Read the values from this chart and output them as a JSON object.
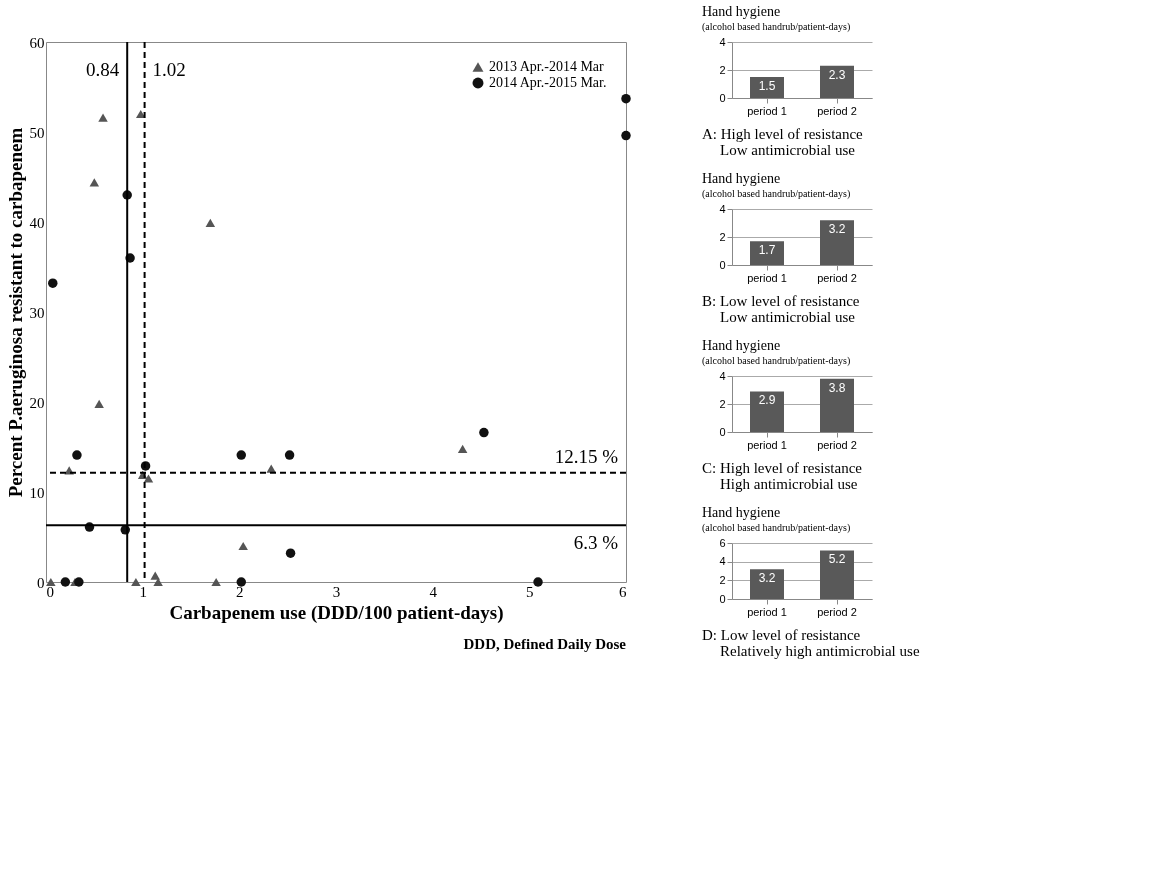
{
  "chart_data": [
    {
      "type": "scatter",
      "xlabel": "Carbapenem use (DDD/100 patient-days)",
      "ylabel": "Percent P.aeruginosa resistant to carbapenem",
      "xlim": [
        0,
        6
      ],
      "xticks": [
        0,
        1,
        2,
        3,
        4,
        5,
        6
      ],
      "ylim": [
        0,
        60
      ],
      "yticks": [
        0,
        10,
        20,
        30,
        40,
        50,
        60
      ],
      "grid": false,
      "legend": "top right",
      "series": [
        {
          "name": "2013 Apr.-2014 Mar",
          "color": "#555555",
          "marker": "triangle",
          "x": [
            0.59,
            0.98,
            0.5,
            1.7,
            0.55,
            0.24,
            1.0,
            1.06,
            2.33,
            2.04,
            1.13,
            1.16,
            0.93,
            1.76,
            0.3,
            0.05,
            4.31
          ],
          "values": [
            51.6,
            52.0,
            44.4,
            39.9,
            19.8,
            12.4,
            11.9,
            11.5,
            12.6,
            4.0,
            0.7,
            0,
            0,
            0,
            0,
            0,
            14.8
          ]
        },
        {
          "name": "2014 Apr.-2015 Mar.",
          "color": "#111111",
          "marker": "circle",
          "x": [
            0.84,
            0.87,
            0.07,
            0.32,
            1.03,
            2.02,
            2.52,
            0.45,
            0.82,
            2.53,
            2.02,
            0.2,
            0.34,
            4.53,
            5.09,
            6,
            6
          ],
          "values": [
            43.0,
            36.0,
            33.2,
            14.1,
            12.9,
            14.1,
            14.1,
            6.1,
            5.8,
            3.2,
            0,
            0,
            0,
            16.6,
            0,
            53.7,
            49.6
          ]
        }
      ],
      "ref_lines": [
        {
          "axis": "x",
          "value": 0.84,
          "label": "0.84",
          "line_style": "solid",
          "color": "#000000"
        },
        {
          "axis": "x",
          "value": 1.02,
          "label": "1.02",
          "line_style": "dashed",
          "color": "#000000"
        },
        {
          "axis": "y",
          "value": 12.15,
          "label": "12.15 %",
          "line_style": "dashed",
          "color": "#000000"
        },
        {
          "axis": "y",
          "value": 6.3,
          "label": "6.3 %",
          "line_style": "solid",
          "color": "#000000"
        }
      ],
      "annotations": [
        "DDD, Defined Daily Dose"
      ]
    },
    {
      "type": "bar",
      "title": "Hand hygiene",
      "subtitle": "(alcohol based handrub/patient-days)",
      "categories": [
        "period 1",
        "period 2"
      ],
      "values": [
        1.5,
        2.3
      ],
      "color": "#595959",
      "ylim": [
        0,
        4
      ],
      "yticks": [
        0,
        2,
        4
      ],
      "grid": "y",
      "data_labels": true,
      "annotations": [
        "A: High level of resistance",
        "Low antimicrobial use"
      ]
    },
    {
      "type": "bar",
      "title": "Hand hygiene",
      "subtitle": "(alcohol based handrub/patient-days)",
      "categories": [
        "period 1",
        "period 2"
      ],
      "values": [
        1.7,
        3.2
      ],
      "color": "#595959",
      "ylim": [
        0,
        4
      ],
      "yticks": [
        0,
        2,
        4
      ],
      "grid": "y",
      "data_labels": true,
      "annotations": [
        "B: Low level of resistance",
        "Low antimicrobial use"
      ]
    },
    {
      "type": "bar",
      "title": "Hand hygiene",
      "subtitle": "(alcohol based handrub/patient-days)",
      "categories": [
        "period 1",
        "period 2"
      ],
      "values": [
        2.9,
        3.8
      ],
      "color": "#595959",
      "ylim": [
        0,
        4
      ],
      "yticks": [
        0,
        2,
        4
      ],
      "grid": "y",
      "data_labels": true,
      "annotations": [
        "C: High level of resistance",
        "High antimicrobial use"
      ]
    },
    {
      "type": "bar",
      "title": "Hand hygiene",
      "subtitle": "(alcohol based handrub/patient-days)",
      "categories": [
        "period 1",
        "period 2"
      ],
      "values": [
        3.2,
        5.2
      ],
      "color": "#595959",
      "ylim": [
        0,
        6
      ],
      "yticks": [
        0,
        2,
        4,
        6
      ],
      "grid": "y",
      "data_labels": true,
      "annotations": [
        "D: Low level of resistance",
        "Relatively high antimicrobial use"
      ]
    }
  ]
}
